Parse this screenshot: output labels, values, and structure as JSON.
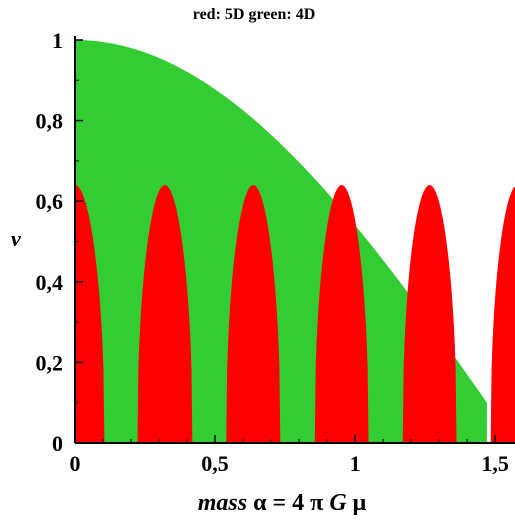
{
  "chart_data": {
    "type": "area",
    "title": "red: 5D   green: 4D",
    "xlabel_parts": [
      "mass",
      " α = 4 π ",
      "G",
      " μ"
    ],
    "ylabel": "v",
    "xlim": [
      0,
      1.5708
    ],
    "ylim": [
      0,
      1
    ],
    "x_ticks": [
      0,
      0.5,
      1,
      1.5
    ],
    "x_tick_labels": [
      "0",
      "0,5",
      "1",
      "1,5"
    ],
    "y_ticks": [
      0,
      0.2,
      0.4,
      0.6,
      0.8,
      1
    ],
    "y_tick_labels": [
      "0",
      "0,2",
      "0,4",
      "0,6",
      "0,8",
      "1"
    ],
    "grid": false,
    "series": [
      {
        "name": "4D",
        "color": "#33cc33",
        "formula": "v = cos(x)",
        "x_range": [
          0,
          1.4706
        ],
        "samples": [
          [
            0,
            1.0
          ],
          [
            0.5,
            0.878
          ],
          [
            1.0,
            0.54
          ],
          [
            1.4706,
            0.1
          ]
        ]
      },
      {
        "name": "5D",
        "color": "#ff0000",
        "formula": "periodic arches, peak 0.64",
        "peak_value": 0.64,
        "arches_x": [
          [
            -0.105,
            0.105
          ],
          [
            0.223,
            0.419
          ],
          [
            0.54,
            0.733
          ],
          [
            0.856,
            1.048
          ],
          [
            1.17,
            1.362
          ],
          [
            1.484,
            1.676
          ]
        ]
      }
    ]
  }
}
